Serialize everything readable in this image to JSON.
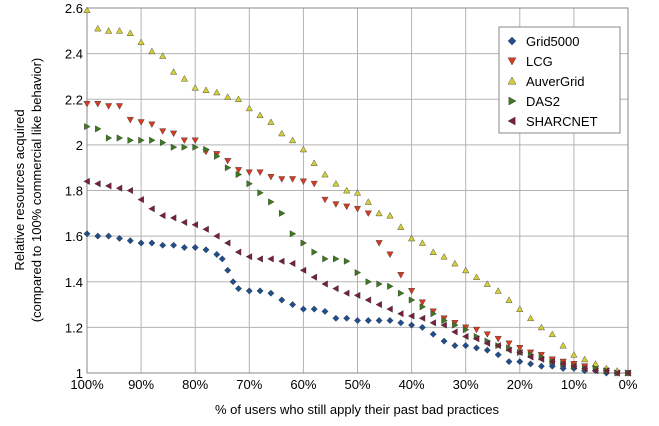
{
  "chart_data": {
    "type": "scatter",
    "xlabel": "% of users who still apply their past bad practices",
    "ylabel_line1": "Relative resources acquired",
    "ylabel_line2": "(compared to 100% commercial like behavior)",
    "x_unit": "%",
    "xlim": [
      100,
      0
    ],
    "ylim": [
      1,
      2.6
    ],
    "x_ticks": [
      100,
      90,
      80,
      70,
      60,
      50,
      40,
      30,
      20,
      10,
      0
    ],
    "x_tick_labels": [
      "100%",
      "90%",
      "80%",
      "70%",
      "60%",
      "50%",
      "40%",
      "30%",
      "20%",
      "10%",
      "0%"
    ],
    "y_ticks": [
      1,
      1.2,
      1.4,
      1.6,
      1.8,
      2,
      2.2,
      2.4,
      2.6
    ],
    "y_tick_labels": [
      "1",
      "1.2",
      "1.4",
      "1.6",
      "1.8",
      "2",
      "2.2",
      "2.4",
      "2.6"
    ],
    "grid": true,
    "legend_position": "top-right",
    "series": [
      {
        "name": "Grid5000",
        "marker": "diamond",
        "color": "#1f4e8c",
        "points": [
          [
            100,
            1.61
          ],
          [
            98,
            1.6
          ],
          [
            96,
            1.6
          ],
          [
            94,
            1.59
          ],
          [
            92,
            1.58
          ],
          [
            90,
            1.57
          ],
          [
            88,
            1.57
          ],
          [
            86,
            1.56
          ],
          [
            84,
            1.56
          ],
          [
            82,
            1.55
          ],
          [
            80,
            1.55
          ],
          [
            78,
            1.54
          ],
          [
            76,
            1.52
          ],
          [
            75,
            1.5
          ],
          [
            74,
            1.45
          ],
          [
            73,
            1.4
          ],
          [
            72,
            1.37
          ],
          [
            70,
            1.36
          ],
          [
            68,
            1.36
          ],
          [
            66,
            1.35
          ],
          [
            64,
            1.32
          ],
          [
            62,
            1.3
          ],
          [
            60,
            1.28
          ],
          [
            58,
            1.28
          ],
          [
            56,
            1.27
          ],
          [
            54,
            1.24
          ],
          [
            52,
            1.24
          ],
          [
            50,
            1.23
          ],
          [
            48,
            1.23
          ],
          [
            46,
            1.23
          ],
          [
            44,
            1.23
          ],
          [
            42,
            1.22
          ],
          [
            40,
            1.21
          ],
          [
            38,
            1.2
          ],
          [
            36,
            1.17
          ],
          [
            34,
            1.14
          ],
          [
            32,
            1.12
          ],
          [
            30,
            1.12
          ],
          [
            28,
            1.11
          ],
          [
            26,
            1.1
          ],
          [
            24,
            1.08
          ],
          [
            22,
            1.05
          ],
          [
            20,
            1.05
          ],
          [
            18,
            1.04
          ],
          [
            16,
            1.03
          ],
          [
            14,
            1.03
          ],
          [
            12,
            1.02
          ],
          [
            10,
            1.02
          ],
          [
            8,
            1.01
          ],
          [
            6,
            1.01
          ],
          [
            4,
            1.0
          ],
          [
            2,
            1.0
          ],
          [
            0,
            1.0
          ]
        ]
      },
      {
        "name": "LCG",
        "marker": "triangle-down",
        "color": "#d63a1f",
        "points": [
          [
            100,
            2.18
          ],
          [
            98,
            2.18
          ],
          [
            96,
            2.17
          ],
          [
            94,
            2.17
          ],
          [
            92,
            2.11
          ],
          [
            90,
            2.1
          ],
          [
            88,
            2.09
          ],
          [
            86,
            2.06
          ],
          [
            84,
            2.05
          ],
          [
            82,
            2.02
          ],
          [
            80,
            2.02
          ],
          [
            78,
            1.97
          ],
          [
            76,
            1.96
          ],
          [
            74,
            1.93
          ],
          [
            72,
            1.89
          ],
          [
            70,
            1.88
          ],
          [
            68,
            1.88
          ],
          [
            66,
            1.86
          ],
          [
            64,
            1.85
          ],
          [
            62,
            1.85
          ],
          [
            60,
            1.84
          ],
          [
            58,
            1.83
          ],
          [
            56,
            1.76
          ],
          [
            54,
            1.74
          ],
          [
            52,
            1.73
          ],
          [
            50,
            1.72
          ],
          [
            48,
            1.7
          ],
          [
            46,
            1.57
          ],
          [
            44,
            1.52
          ],
          [
            42,
            1.43
          ],
          [
            40,
            1.36
          ],
          [
            38,
            1.31
          ],
          [
            36,
            1.27
          ],
          [
            34,
            1.24
          ],
          [
            32,
            1.22
          ],
          [
            30,
            1.2
          ],
          [
            28,
            1.19
          ],
          [
            26,
            1.17
          ],
          [
            24,
            1.15
          ],
          [
            22,
            1.13
          ],
          [
            20,
            1.11
          ],
          [
            18,
            1.09
          ],
          [
            16,
            1.08
          ],
          [
            14,
            1.06
          ],
          [
            12,
            1.05
          ],
          [
            10,
            1.04
          ],
          [
            8,
            1.03
          ],
          [
            6,
            1.02
          ],
          [
            4,
            1.01
          ],
          [
            2,
            1.0
          ],
          [
            0,
            1.0
          ]
        ]
      },
      {
        "name": "AuverGrid",
        "marker": "triangle-up",
        "color": "#d4cf34",
        "points": [
          [
            100,
            2.59
          ],
          [
            98,
            2.51
          ],
          [
            96,
            2.5
          ],
          [
            94,
            2.5
          ],
          [
            92,
            2.49
          ],
          [
            90,
            2.45
          ],
          [
            88,
            2.41
          ],
          [
            86,
            2.39
          ],
          [
            84,
            2.32
          ],
          [
            82,
            2.29
          ],
          [
            80,
            2.25
          ],
          [
            78,
            2.24
          ],
          [
            76,
            2.23
          ],
          [
            74,
            2.21
          ],
          [
            72,
            2.2
          ],
          [
            70,
            2.16
          ],
          [
            68,
            2.13
          ],
          [
            66,
            2.1
          ],
          [
            64,
            2.05
          ],
          [
            62,
            2.02
          ],
          [
            60,
            1.98
          ],
          [
            58,
            1.92
          ],
          [
            56,
            1.87
          ],
          [
            54,
            1.83
          ],
          [
            52,
            1.8
          ],
          [
            50,
            1.79
          ],
          [
            48,
            1.75
          ],
          [
            46,
            1.7
          ],
          [
            44,
            1.69
          ],
          [
            42,
            1.64
          ],
          [
            40,
            1.59
          ],
          [
            38,
            1.57
          ],
          [
            36,
            1.53
          ],
          [
            34,
            1.51
          ],
          [
            32,
            1.48
          ],
          [
            30,
            1.45
          ],
          [
            28,
            1.42
          ],
          [
            26,
            1.39
          ],
          [
            24,
            1.36
          ],
          [
            22,
            1.32
          ],
          [
            20,
            1.28
          ],
          [
            18,
            1.24
          ],
          [
            16,
            1.2
          ],
          [
            14,
            1.17
          ],
          [
            12,
            1.12
          ],
          [
            10,
            1.08
          ],
          [
            8,
            1.06
          ],
          [
            6,
            1.04
          ],
          [
            4,
            1.02
          ],
          [
            2,
            1.01
          ],
          [
            0,
            1.0
          ]
        ]
      },
      {
        "name": "DAS2",
        "marker": "triangle-right",
        "color": "#3d7a1c",
        "points": [
          [
            100,
            2.08
          ],
          [
            98,
            2.07
          ],
          [
            96,
            2.03
          ],
          [
            94,
            2.03
          ],
          [
            92,
            2.02
          ],
          [
            90,
            2.02
          ],
          [
            88,
            2.02
          ],
          [
            86,
            2.01
          ],
          [
            84,
            1.99
          ],
          [
            82,
            1.99
          ],
          [
            80,
            1.99
          ],
          [
            78,
            1.98
          ],
          [
            76,
            1.95
          ],
          [
            74,
            1.9
          ],
          [
            72,
            1.87
          ],
          [
            70,
            1.83
          ],
          [
            68,
            1.79
          ],
          [
            66,
            1.75
          ],
          [
            64,
            1.7
          ],
          [
            62,
            1.61
          ],
          [
            60,
            1.57
          ],
          [
            58,
            1.53
          ],
          [
            56,
            1.5
          ],
          [
            54,
            1.5
          ],
          [
            52,
            1.49
          ],
          [
            50,
            1.44
          ],
          [
            48,
            1.4
          ],
          [
            46,
            1.39
          ],
          [
            44,
            1.38
          ],
          [
            42,
            1.35
          ],
          [
            40,
            1.32
          ],
          [
            38,
            1.29
          ],
          [
            36,
            1.26
          ],
          [
            34,
            1.23
          ],
          [
            32,
            1.21
          ],
          [
            30,
            1.19
          ],
          [
            28,
            1.16
          ],
          [
            26,
            1.14
          ],
          [
            24,
            1.12
          ],
          [
            22,
            1.11
          ],
          [
            20,
            1.09
          ],
          [
            18,
            1.08
          ],
          [
            16,
            1.07
          ],
          [
            14,
            1.05
          ],
          [
            12,
            1.04
          ],
          [
            10,
            1.03
          ],
          [
            8,
            1.02
          ],
          [
            6,
            1.02
          ],
          [
            4,
            1.01
          ],
          [
            2,
            1.0
          ],
          [
            0,
            1.0
          ]
        ]
      },
      {
        "name": "SHARCNET",
        "marker": "triangle-left",
        "color": "#7a1f3a",
        "points": [
          [
            100,
            1.84
          ],
          [
            98,
            1.83
          ],
          [
            96,
            1.82
          ],
          [
            94,
            1.81
          ],
          [
            92,
            1.8
          ],
          [
            90,
            1.76
          ],
          [
            88,
            1.72
          ],
          [
            86,
            1.69
          ],
          [
            84,
            1.68
          ],
          [
            82,
            1.66
          ],
          [
            80,
            1.65
          ],
          [
            78,
            1.63
          ],
          [
            76,
            1.6
          ],
          [
            74,
            1.57
          ],
          [
            72,
            1.53
          ],
          [
            70,
            1.51
          ],
          [
            68,
            1.5
          ],
          [
            66,
            1.5
          ],
          [
            64,
            1.49
          ],
          [
            62,
            1.48
          ],
          [
            60,
            1.45
          ],
          [
            58,
            1.42
          ],
          [
            56,
            1.39
          ],
          [
            54,
            1.37
          ],
          [
            52,
            1.35
          ],
          [
            50,
            1.34
          ],
          [
            48,
            1.32
          ],
          [
            46,
            1.3
          ],
          [
            44,
            1.28
          ],
          [
            42,
            1.26
          ],
          [
            40,
            1.25
          ],
          [
            38,
            1.24
          ],
          [
            36,
            1.22
          ],
          [
            34,
            1.21
          ],
          [
            32,
            1.18
          ],
          [
            30,
            1.16
          ],
          [
            28,
            1.15
          ],
          [
            26,
            1.13
          ],
          [
            24,
            1.12
          ],
          [
            22,
            1.1
          ],
          [
            20,
            1.09
          ],
          [
            18,
            1.07
          ],
          [
            16,
            1.06
          ],
          [
            14,
            1.05
          ],
          [
            12,
            1.04
          ],
          [
            10,
            1.03
          ],
          [
            8,
            1.02
          ],
          [
            6,
            1.01
          ],
          [
            4,
            1.01
          ],
          [
            2,
            1.0
          ],
          [
            0,
            1.0
          ]
        ]
      }
    ]
  }
}
